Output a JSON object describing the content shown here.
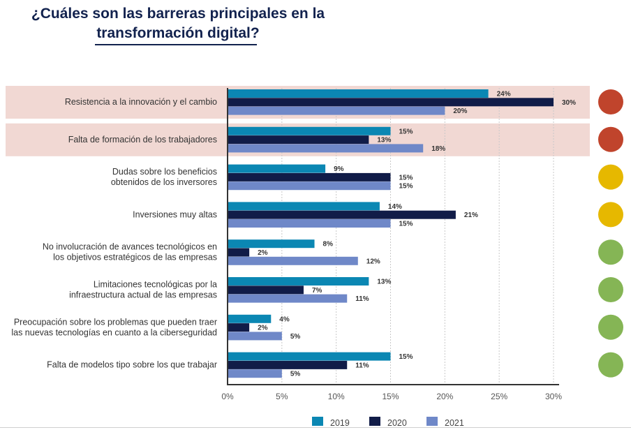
{
  "title_line1": "¿Cuáles son las barreras principales en la",
  "title_line2": "transformación digital?",
  "colors": {
    "2019": "#0b87b3",
    "2020": "#111c48",
    "2021": "#6f88c8",
    "highlight": "#f1d8d3",
    "red": "#c0442c",
    "yellow": "#e6b800",
    "green": "#85b555",
    "axis": "#333333",
    "grid": "#c8c8c8"
  },
  "chart_data": {
    "type": "bar",
    "orientation": "horizontal",
    "categories": [
      [
        "Resistencia a la innovación y el cambio"
      ],
      [
        "Falta de formación de los trabajadores"
      ],
      [
        "Dudas sobre los beneficios",
        "obtenidos de los inversores"
      ],
      [
        "Inversiones muy altas"
      ],
      [
        "No involucración de avances tecnológicos en",
        "los objetivos estratégicos de las empresas"
      ],
      [
        "Limitaciones tecnológicas por la",
        "infraestructura actual de las empresas"
      ],
      [
        "Preocupación sobre los problemas que pueden traer",
        "las nuevas tecnologías en cuanto a la ciberseguridad"
      ],
      [
        "Falta de modelos tipo sobre los que trabajar"
      ]
    ],
    "series": [
      {
        "name": "2019",
        "values": [
          24,
          15,
          9,
          14,
          8,
          13,
          4,
          15
        ]
      },
      {
        "name": "2020",
        "values": [
          30,
          13,
          15,
          21,
          2,
          7,
          2,
          11
        ]
      },
      {
        "name": "2021",
        "values": [
          20,
          18,
          15,
          15,
          12,
          11,
          5,
          5
        ]
      }
    ],
    "xlim": [
      0,
      30
    ],
    "xticks": [
      0,
      5,
      10,
      15,
      20,
      25,
      30
    ],
    "tick_suffix": "%",
    "grid": true,
    "legend_position": "bottom",
    "highlighted_rows": [
      0,
      1
    ],
    "status_indicators": [
      "red",
      "red",
      "yellow",
      "yellow",
      "green",
      "green",
      "green",
      "green"
    ]
  }
}
